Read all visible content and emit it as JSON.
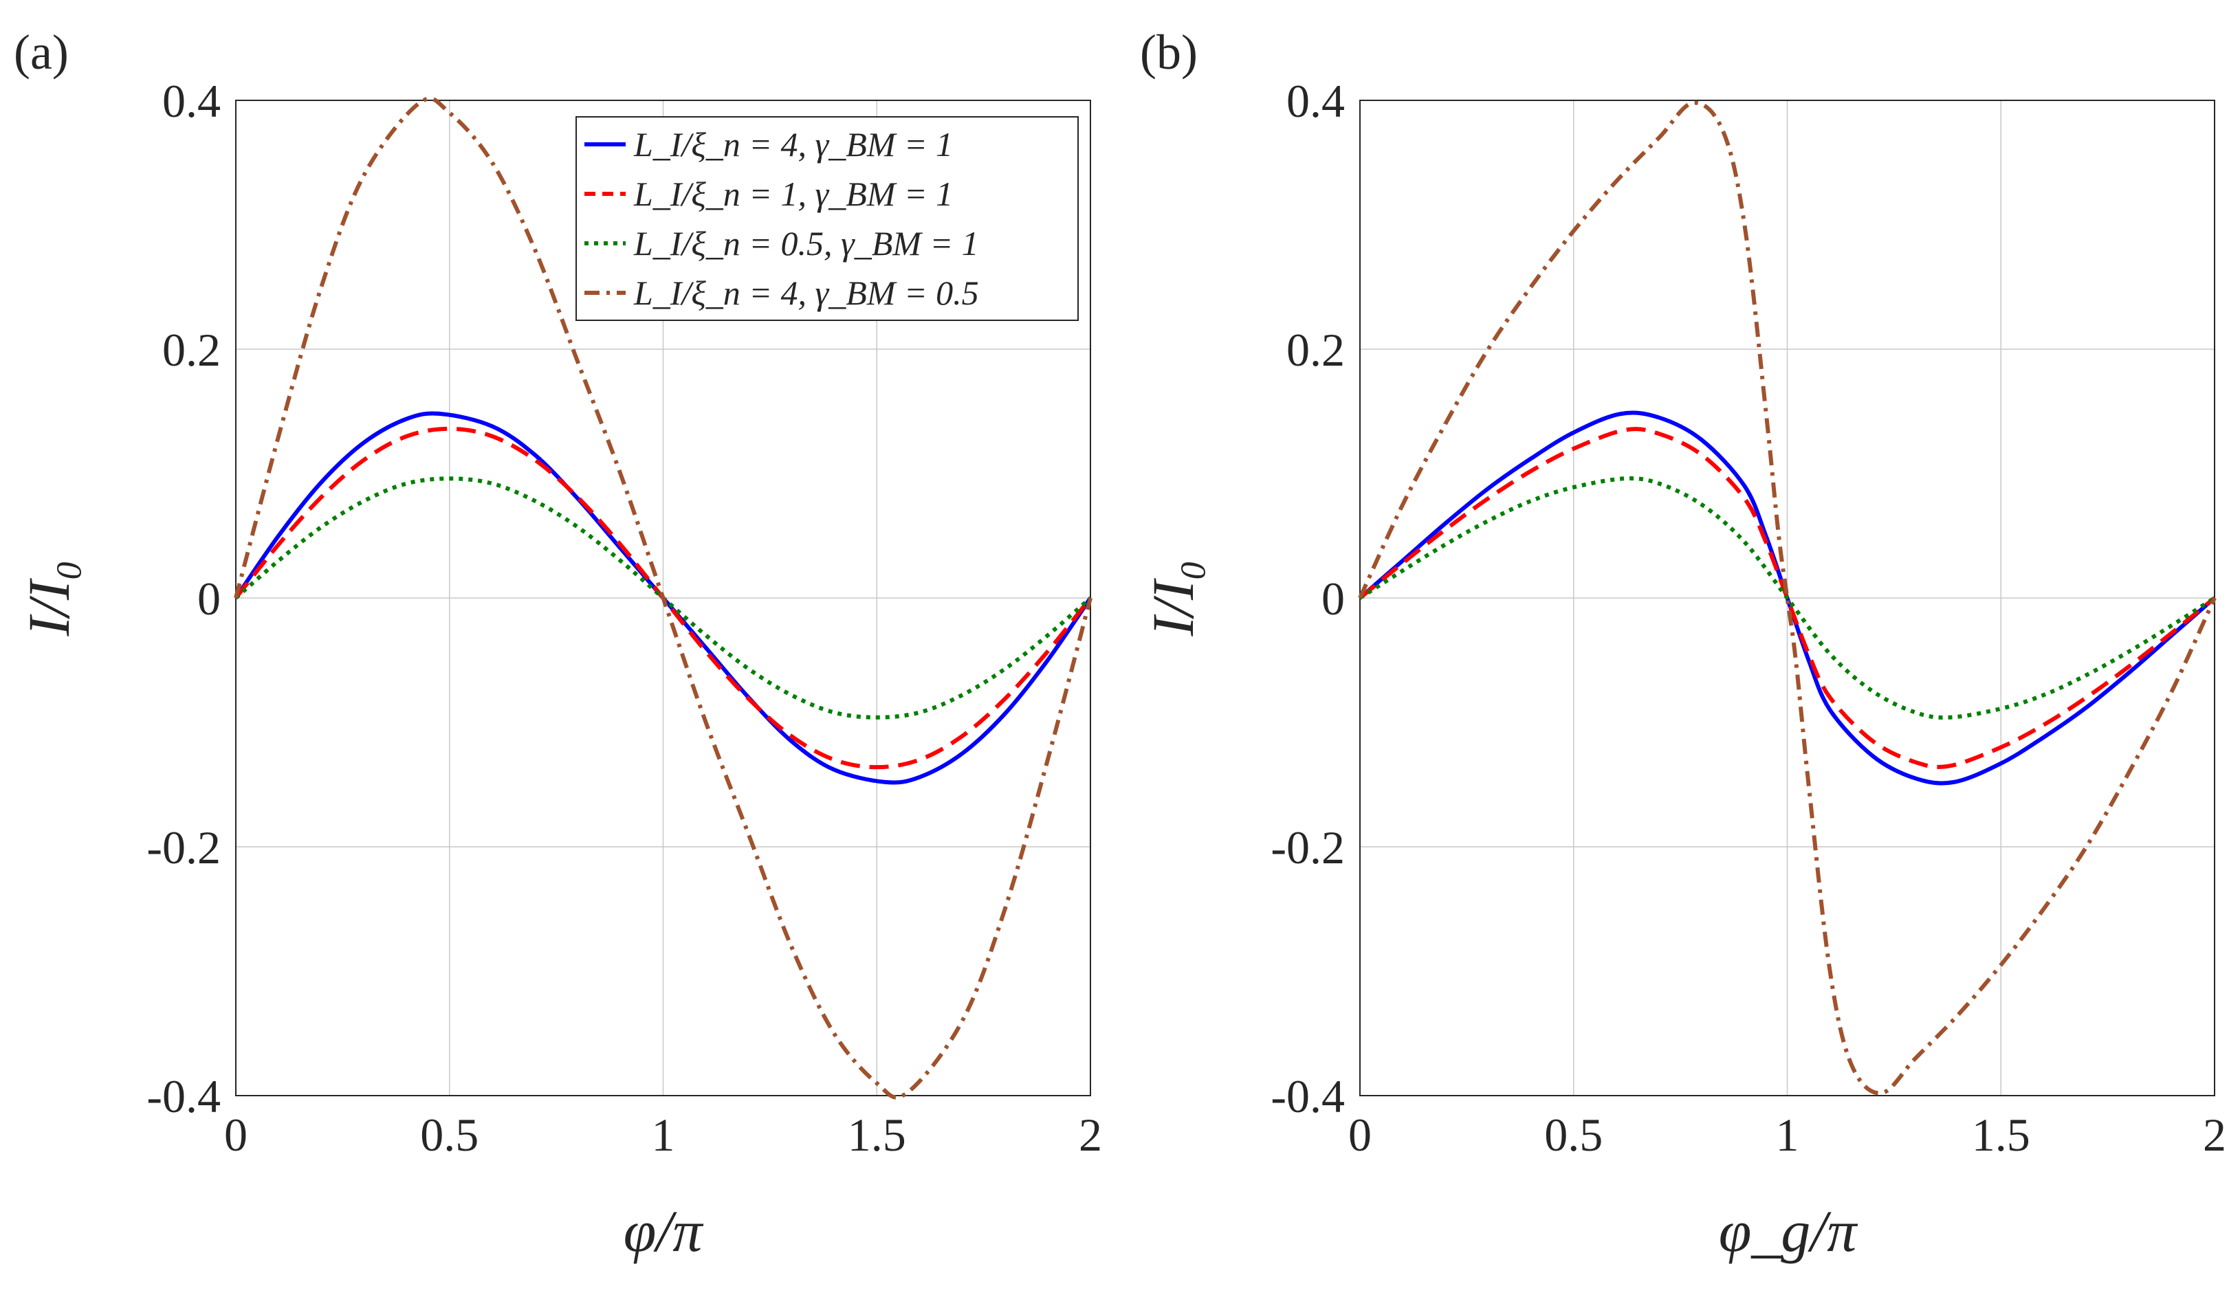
{
  "figure": {
    "panels": [
      {
        "id": "a",
        "label": "(a)",
        "xlabel": "φ/π",
        "ylabel": "I/I₀"
      },
      {
        "id": "b",
        "label": "(b)",
        "xlabel": "φ_g/π",
        "ylabel": "I/I₀"
      }
    ],
    "legend": {
      "entries": [
        "L_I/ξ_n = 4, γ_BM = 1",
        "L_I/ξ_n = 1, γ_BM = 1",
        "L_I/ξ_n = 0.5, γ_BM = 1",
        "L_I/ξ_n = 4, γ_BM = 0.5"
      ]
    },
    "series_colors": [
      "#0000ff",
      "#ff0000",
      "#008000",
      "#a0522d"
    ],
    "series_dash": [
      "solid",
      "dashed",
      "dotted",
      "dash-dot"
    ]
  },
  "chart_data": [
    {
      "type": "line",
      "panel": "(a)",
      "title": "",
      "xlabel": "φ/π",
      "ylabel": "I/I₀",
      "xlim": [
        0,
        2
      ],
      "ylim": [
        -0.4,
        0.4
      ],
      "xticks": [
        "0",
        "0.5",
        "1",
        "1.5",
        "2"
      ],
      "yticks": [
        "-0.4",
        "-0.2",
        "0",
        "0.2",
        "0.4"
      ],
      "grid": true,
      "legend_position": "top-right",
      "series": [
        {
          "name": "L_I/ξ_n = 4, γ_BM = 1",
          "x": [
            0,
            0.1,
            0.2,
            0.3,
            0.4,
            0.48,
            0.6,
            0.7,
            0.8,
            0.9,
            1,
            1.1,
            1.2,
            1.3,
            1.4,
            1.52,
            1.6,
            1.7,
            1.8,
            1.9,
            2
          ],
          "y": [
            0,
            0.05,
            0.093,
            0.125,
            0.144,
            0.148,
            0.138,
            0.115,
            0.08,
            0.04,
            0,
            -0.04,
            -0.08,
            -0.115,
            -0.138,
            -0.148,
            -0.144,
            -0.125,
            -0.093,
            -0.05,
            0
          ]
        },
        {
          "name": "L_I/ξ_n = 1, γ_BM = 1",
          "x": [
            0,
            0.1,
            0.2,
            0.3,
            0.4,
            0.5,
            0.6,
            0.7,
            0.8,
            0.9,
            1,
            1.1,
            1.2,
            1.3,
            1.4,
            1.5,
            1.6,
            1.7,
            1.8,
            1.9,
            2
          ],
          "y": [
            0,
            0.043,
            0.081,
            0.111,
            0.13,
            0.136,
            0.13,
            0.111,
            0.081,
            0.043,
            0,
            -0.043,
            -0.081,
            -0.111,
            -0.13,
            -0.136,
            -0.13,
            -0.111,
            -0.081,
            -0.043,
            0
          ]
        },
        {
          "name": "L_I/ξ_n = 0.5, γ_BM = 1",
          "x": [
            0,
            0.1,
            0.2,
            0.3,
            0.4,
            0.5,
            0.6,
            0.7,
            0.8,
            0.9,
            1,
            1.1,
            1.2,
            1.3,
            1.4,
            1.5,
            1.6,
            1.7,
            1.8,
            1.9,
            2
          ],
          "y": [
            0,
            0.03,
            0.057,
            0.078,
            0.092,
            0.096,
            0.092,
            0.078,
            0.057,
            0.03,
            0,
            -0.03,
            -0.057,
            -0.078,
            -0.092,
            -0.096,
            -0.092,
            -0.078,
            -0.057,
            -0.03,
            0
          ]
        },
        {
          "name": "L_I/ξ_n = 4, γ_BM = 0.5",
          "x": [
            0,
            0.1,
            0.2,
            0.3,
            0.43,
            0.5,
            0.6,
            0.7,
            0.8,
            0.9,
            1,
            1.1,
            1.2,
            1.3,
            1.4,
            1.5,
            1.57,
            1.7,
            1.8,
            1.9,
            2
          ],
          "y": [
            0,
            0.13,
            0.25,
            0.34,
            0.398,
            0.39,
            0.35,
            0.28,
            0.19,
            0.1,
            0,
            -0.1,
            -0.19,
            -0.28,
            -0.35,
            -0.39,
            -0.398,
            -0.34,
            -0.25,
            -0.13,
            0
          ]
        }
      ]
    },
    {
      "type": "line",
      "panel": "(b)",
      "title": "",
      "xlabel": "φ_g/π",
      "ylabel": "I/I₀",
      "xlim": [
        0,
        2
      ],
      "ylim": [
        -0.4,
        0.4
      ],
      "xticks": [
        "0",
        "0.5",
        "1",
        "1.5",
        "2"
      ],
      "yticks": [
        "-0.4",
        "-0.2",
        "0",
        "0.2",
        "0.4"
      ],
      "grid": true,
      "series": [
        {
          "name": "L_I/ξ_n = 4, γ_BM = 1",
          "x": [
            0,
            0.1,
            0.2,
            0.3,
            0.4,
            0.5,
            0.61,
            0.7,
            0.8,
            0.9,
            0.95,
            1,
            1.05,
            1.1,
            1.2,
            1.3,
            1.39,
            1.5,
            1.6,
            1.7,
            1.8,
            1.9,
            2
          ],
          "y": [
            0,
            0.03,
            0.06,
            0.088,
            0.112,
            0.133,
            0.148,
            0.145,
            0.127,
            0.09,
            0.05,
            0,
            -0.05,
            -0.09,
            -0.127,
            -0.145,
            -0.148,
            -0.133,
            -0.112,
            -0.088,
            -0.06,
            -0.03,
            0
          ]
        },
        {
          "name": "L_I/ξ_n = 1, γ_BM = 1",
          "x": [
            0,
            0.1,
            0.2,
            0.3,
            0.4,
            0.5,
            0.62,
            0.7,
            0.8,
            0.9,
            0.95,
            1,
            1.05,
            1.1,
            1.2,
            1.3,
            1.38,
            1.5,
            1.6,
            1.7,
            1.8,
            1.9,
            2
          ],
          "y": [
            0,
            0.028,
            0.055,
            0.08,
            0.102,
            0.12,
            0.135,
            0.132,
            0.115,
            0.08,
            0.045,
            0,
            -0.045,
            -0.08,
            -0.115,
            -0.132,
            -0.135,
            -0.12,
            -0.102,
            -0.08,
            -0.055,
            -0.028,
            0
          ]
        },
        {
          "name": "L_I/ξ_n = 0.5, γ_BM = 1",
          "x": [
            0,
            0.1,
            0.2,
            0.3,
            0.4,
            0.5,
            0.62,
            0.7,
            0.8,
            0.9,
            1,
            1.1,
            1.2,
            1.3,
            1.38,
            1.5,
            1.6,
            1.7,
            1.8,
            1.9,
            2
          ],
          "y": [
            0,
            0.022,
            0.043,
            0.062,
            0.078,
            0.089,
            0.096,
            0.092,
            0.075,
            0.045,
            0,
            -0.045,
            -0.075,
            -0.092,
            -0.096,
            -0.089,
            -0.078,
            -0.062,
            -0.043,
            -0.022,
            0
          ]
        },
        {
          "name": "L_I/ξ_n = 4, γ_BM = 0.5",
          "x": [
            0,
            0.1,
            0.2,
            0.3,
            0.4,
            0.5,
            0.6,
            0.7,
            0.78,
            0.85,
            0.9,
            0.95,
            0.98,
            1,
            1.02,
            1.05,
            1.1,
            1.15,
            1.22,
            1.3,
            1.4,
            1.5,
            1.6,
            1.7,
            1.8,
            1.9,
            2
          ],
          "y": [
            0,
            0.075,
            0.14,
            0.2,
            0.25,
            0.295,
            0.335,
            0.37,
            0.398,
            0.375,
            0.3,
            0.15,
            0.05,
            0,
            -0.05,
            -0.15,
            -0.3,
            -0.375,
            -0.398,
            -0.37,
            -0.335,
            -0.295,
            -0.25,
            -0.2,
            -0.14,
            -0.075,
            0
          ]
        }
      ]
    }
  ]
}
